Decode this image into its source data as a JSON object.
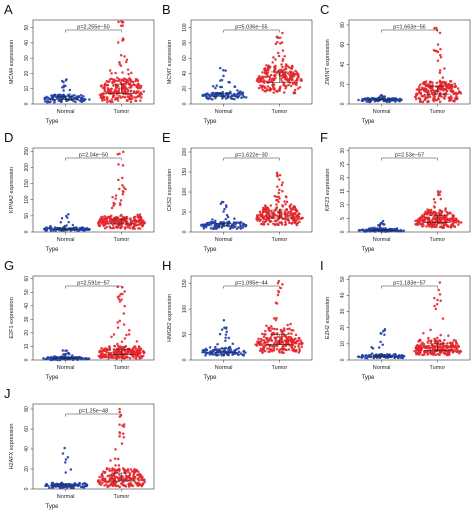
{
  "chart_data": [
    {
      "panel": "A",
      "type": "scatter",
      "title": "",
      "xlabel": "Type",
      "ylabel": "MCM4 expression",
      "categories": [
        "Normal",
        "Tumor"
      ],
      "ylim": [
        0,
        55
      ],
      "yticks": [
        0,
        10,
        20,
        30,
        40,
        50
      ],
      "pvalue": "p=2.255e−50",
      "series": [
        {
          "values": [
            {
              "median": 3,
              "q3": 5,
              "max": 16,
              "spread": 2
            },
            {
              "median": 7,
              "q3": 13,
              "max": 54,
              "spread": 6
            }
          ]
        }
      ]
    },
    {
      "panel": "B",
      "type": "scatter",
      "title": "",
      "xlabel": "Type",
      "ylabel": "MCM7 expression",
      "categories": [
        "Normal",
        "Tumor"
      ],
      "ylim": [
        0,
        110
      ],
      "yticks": [
        0,
        20,
        40,
        60,
        80,
        100
      ],
      "pvalue": "p=5.036e−55",
      "series": [
        {
          "values": [
            {
              "median": 10,
              "q3": 14,
              "max": 47,
              "spread": 4
            },
            {
              "median": 28,
              "q3": 42,
              "max": 93,
              "spread": 14
            }
          ]
        }
      ]
    },
    {
      "panel": "C",
      "type": "scatter",
      "title": "",
      "xlabel": "Type",
      "ylabel": "ZWINT expression",
      "categories": [
        "Normal",
        "Tumor"
      ],
      "ylim": [
        0,
        85
      ],
      "yticks": [
        0,
        20,
        40,
        60,
        80
      ],
      "pvalue": "p=1.663e−56",
      "series": [
        {
          "values": [
            {
              "median": 4,
              "q3": 5,
              "max": 9,
              "spread": 2
            },
            {
              "median": 10,
              "q3": 18,
              "max": 77,
              "spread": 8
            }
          ]
        }
      ]
    },
    {
      "panel": "D",
      "type": "scatter",
      "title": "",
      "xlabel": "Type",
      "ylabel": "KPNA2 expression",
      "categories": [
        "Normal",
        "Tumor"
      ],
      "ylim": [
        0,
        260
      ],
      "yticks": [
        0,
        50,
        100,
        150,
        200,
        250
      ],
      "pvalue": "p=2.04e−50",
      "series": [
        {
          "values": [
            {
              "median": 8,
              "q3": 12,
              "max": 55,
              "spread": 4
            },
            {
              "median": 25,
              "q3": 40,
              "max": 248,
              "spread": 15
            }
          ]
        }
      ]
    },
    {
      "panel": "E",
      "type": "scatter",
      "title": "",
      "xlabel": "Type",
      "ylabel": "CKS2 expression",
      "categories": [
        "Normal",
        "Tumor"
      ],
      "ylim": [
        0,
        210
      ],
      "yticks": [
        0,
        50,
        100,
        150,
        200
      ],
      "pvalue": "p=1.622e−30",
      "series": [
        {
          "values": [
            {
              "median": 15,
              "q3": 22,
              "max": 75,
              "spread": 7
            },
            {
              "median": 35,
              "q3": 55,
              "max": 148,
              "spread": 18
            }
          ]
        }
      ]
    },
    {
      "panel": "F",
      "type": "scatter",
      "title": "",
      "xlabel": "Type",
      "ylabel": "KIF23 expression",
      "categories": [
        "Normal",
        "Tumor"
      ],
      "ylim": [
        0,
        31
      ],
      "yticks": [
        0,
        5,
        10,
        15,
        20,
        25,
        30
      ],
      "pvalue": "p=2.53e−57",
      "series": [
        {
          "values": [
            {
              "median": 0.5,
              "q3": 1,
              "max": 4,
              "spread": 0.4
            },
            {
              "median": 3.5,
              "q3": 6,
              "max": 15,
              "spread": 2
            }
          ]
        }
      ]
    },
    {
      "panel": "G",
      "type": "scatter",
      "title": "",
      "xlabel": "Type",
      "ylabel": "E2F1 expression",
      "categories": [
        "Normal",
        "Tumor"
      ],
      "ylim": [
        0,
        62
      ],
      "yticks": [
        0,
        10,
        20,
        30,
        40,
        50,
        60
      ],
      "pvalue": "p=2.591e−57",
      "series": [
        {
          "values": [
            {
              "median": 1,
              "q3": 2,
              "max": 7,
              "spread": 1
            },
            {
              "median": 4,
              "q3": 8,
              "max": 54,
              "spread": 3
            }
          ]
        }
      ]
    },
    {
      "panel": "H",
      "type": "scatter",
      "title": "",
      "xlabel": "Type",
      "ylabel": "HMGB2 expression",
      "categories": [
        "Normal",
        "Tumor"
      ],
      "ylim": [
        0,
        165
      ],
      "yticks": [
        0,
        50,
        100,
        150
      ],
      "pvalue": "p=1.095e−44",
      "series": [
        {
          "values": [
            {
              "median": 15,
              "q3": 22,
              "max": 78,
              "spread": 6
            },
            {
              "median": 30,
              "q3": 50,
              "max": 155,
              "spread": 16
            }
          ]
        }
      ]
    },
    {
      "panel": "I",
      "type": "scatter",
      "title": "",
      "xlabel": "Type",
      "ylabel": "EZH2 expression",
      "categories": [
        "Normal",
        "Tumor"
      ],
      "ylim": [
        0,
        52
      ],
      "yticks": [
        0,
        10,
        20,
        30,
        40,
        50
      ],
      "pvalue": "p=1.183e−57",
      "series": [
        {
          "values": [
            {
              "median": 2,
              "q3": 3,
              "max": 19,
              "spread": 1
            },
            {
              "median": 6,
              "q3": 10,
              "max": 48,
              "spread": 3
            }
          ]
        }
      ]
    },
    {
      "panel": "J",
      "type": "scatter",
      "title": "",
      "xlabel": "Type",
      "ylabel": "H2AFX expression",
      "categories": [
        "Normal",
        "Tumor"
      ],
      "ylim": [
        0,
        85
      ],
      "yticks": [
        0,
        20,
        40,
        60,
        80
      ],
      "pvalue": "p=1.25e−48",
      "series": [
        {
          "values": [
            {
              "median": 3,
              "q3": 5,
              "max": 41,
              "spread": 2
            },
            {
              "median": 8,
              "q3": 16,
              "max": 80,
              "spread": 6
            }
          ]
        }
      ]
    }
  ],
  "colors": {
    "normal": "#1f3fa6",
    "tumor": "#e3262b",
    "axis": "#333333"
  },
  "legend": "none",
  "grid": false
}
